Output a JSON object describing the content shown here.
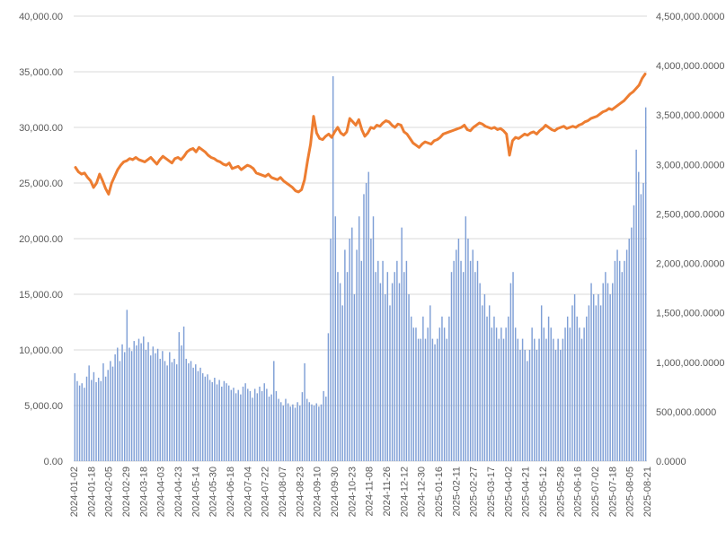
{
  "chart_data": {
    "type": "bar+line",
    "title": "",
    "grid": true,
    "legend": "none",
    "left_axis": {
      "ylim": [
        0,
        40000
      ],
      "ticks": [
        "0.00",
        "5,000.00",
        "10,000.00",
        "15,000.00",
        "20,000.00",
        "25,000.00",
        "30,000.00",
        "35,000.00",
        "40,000.00"
      ]
    },
    "right_axis": {
      "ylim": [
        0,
        4500000
      ],
      "ticks": [
        "0.0000",
        "500,000.0000",
        "1,000,000.0000",
        "1,500,000.0000",
        "2,000,000.0000",
        "2,500,000.0000",
        "3,000,000.0000",
        "3,500,000.0000",
        "4,000,000.0000",
        "4,500,000.0000"
      ]
    },
    "x_ticks": [
      "2024-01-02",
      "2024-01-18",
      "2024-02-05",
      "2024-02-29",
      "2024-03-18",
      "2024-04-03",
      "2024-04-23",
      "2024-05-14",
      "2024-05-30",
      "2024-06-18",
      "2024-07-04",
      "2024-07-22",
      "2024-08-07",
      "2024-08-23",
      "2024-09-10",
      "2024-09-30",
      "2024-10-23",
      "2024-11-08",
      "2024-11-26",
      "2024-12-12",
      "2024-12-30",
      "2025-01-16",
      "2025-02-11",
      "2025-02-27",
      "2025-03-17",
      "2025-04-02",
      "2025-04-21",
      "2025-05-12",
      "2025-05-28",
      "2025-06-16",
      "2025-07-02",
      "2025-07-18",
      "2025-08-05",
      "2025-08-21"
    ],
    "series": [
      {
        "kind": "bar",
        "axis": "left",
        "color": "#7f9fd6",
        "values": [
          7900,
          7200,
          6800,
          7000,
          6600,
          7600,
          8600,
          7300,
          8000,
          7100,
          7500,
          7200,
          8800,
          7600,
          8200,
          9000,
          8500,
          9600,
          10200,
          9000,
          10500,
          9800,
          13600,
          10200,
          9900,
          10800,
          10400,
          11000,
          10600,
          11200,
          10000,
          10700,
          9500,
          10300,
          9700,
          10100,
          9200,
          9900,
          9000,
          8600,
          9800,
          8900,
          9200,
          8700,
          11600,
          10400,
          12100,
          9200,
          8800,
          9000,
          8400,
          8700,
          8100,
          8400,
          7900,
          7600,
          7800,
          7300,
          7100,
          7500,
          6900,
          7300,
          6700,
          7200,
          7000,
          6800,
          6400,
          6600,
          6100,
          6400,
          6000,
          6700,
          7000,
          6500,
          6300,
          5700,
          6500,
          6100,
          6700,
          6300,
          7000,
          6500,
          5800,
          6000,
          9000,
          6300,
          5600,
          5300,
          5000,
          5600,
          5200,
          4900,
          5100,
          4800,
          5300,
          5000,
          6200,
          8800,
          5600,
          5300,
          5100,
          5000,
          5200,
          4900,
          5100,
          6300,
          5800,
          11500,
          20000,
          34600,
          22000,
          17000,
          16000,
          14000,
          19000,
          17000,
          20000,
          21000,
          15000,
          19000,
          22000,
          18000,
          24000,
          25000,
          26000,
          20000,
          22000,
          17000,
          18000,
          16000,
          18000,
          15000,
          17000,
          14000,
          16000,
          17000,
          18000,
          16000,
          21000,
          17000,
          18000,
          15000,
          13000,
          12000,
          12000,
          11000,
          11000,
          13000,
          11000,
          12000,
          14000,
          11000,
          10500,
          11000,
          12000,
          13000,
          12000,
          11000,
          13000,
          17000,
          18000,
          19000,
          20000,
          18000,
          17000,
          22000,
          20000,
          18000,
          19000,
          17000,
          18000,
          16000,
          14000,
          15000,
          13000,
          14000,
          12000,
          13000,
          12000,
          11000,
          12000,
          11000,
          12000,
          13000,
          16000,
          17000,
          12000,
          11000,
          10000,
          11000,
          10000,
          9000,
          10000,
          12000,
          11000,
          10000,
          11000,
          14000,
          12000,
          11000,
          13000,
          12000,
          11000,
          10000,
          11000,
          10000,
          11000,
          12000,
          13000,
          12000,
          14000,
          15000,
          13000,
          12000,
          11000,
          12000,
          13000,
          14000,
          16000,
          15000,
          14000,
          15000,
          14000,
          16000,
          17000,
          16000,
          15000,
          16000,
          18000,
          19000,
          18000,
          17000,
          18000,
          19000,
          20000,
          21000,
          23000,
          28000,
          26000,
          24000,
          25000,
          31800
        ]
      },
      {
        "kind": "line",
        "axis": "left",
        "color": "#ed7d31",
        "values": [
          26400,
          26000,
          25800,
          25900,
          25500,
          25200,
          24600,
          25000,
          25800,
          25200,
          24500,
          24000,
          25000,
          25600,
          26200,
          26600,
          26900,
          27000,
          27200,
          27100,
          27300,
          27100,
          27000,
          26900,
          27100,
          27300,
          27000,
          26700,
          27100,
          27400,
          27200,
          27000,
          26800,
          27200,
          27300,
          27100,
          27400,
          27800,
          28000,
          28100,
          27800,
          28200,
          28000,
          27800,
          27500,
          27300,
          27200,
          27000,
          26900,
          26700,
          26600,
          26800,
          26300,
          26400,
          26500,
          26200,
          26400,
          26600,
          26500,
          26300,
          25900,
          25800,
          25700,
          25600,
          25800,
          25500,
          25400,
          25300,
          25500,
          25200,
          25000,
          24800,
          24600,
          24300,
          24200,
          24400,
          25300,
          27000,
          28500,
          31000,
          29500,
          29000,
          28900,
          29200,
          29400,
          29100,
          29600,
          30000,
          29500,
          29300,
          29600,
          30800,
          30500,
          30200,
          30700,
          29800,
          29200,
          29500,
          30000,
          29900,
          30200,
          30100,
          30400,
          30600,
          30500,
          30200,
          30000,
          30300,
          30200,
          29600,
          29400,
          29000,
          28600,
          28400,
          28200,
          28500,
          28700,
          28600,
          28500,
          28800,
          28900,
          29100,
          29400,
          29500,
          29600,
          29700,
          29800,
          29900,
          30000,
          30200,
          29800,
          29700,
          30000,
          30200,
          30400,
          30300,
          30100,
          30000,
          29900,
          30000,
          29800,
          29900,
          29700,
          29400,
          27500,
          28800,
          29100,
          29000,
          29200,
          29400,
          29300,
          29500,
          29600,
          29400,
          29700,
          29900,
          30200,
          30000,
          29800,
          29700,
          29900,
          30000,
          30100,
          29900,
          30000,
          30100,
          30000,
          30200,
          30300,
          30500,
          30600,
          30800,
          30900,
          31000,
          31200,
          31400,
          31500,
          31700,
          31600,
          31800,
          32000,
          32200,
          32400,
          32700,
          33000,
          33200,
          33500,
          33800,
          34400,
          34800
        ]
      }
    ]
  }
}
